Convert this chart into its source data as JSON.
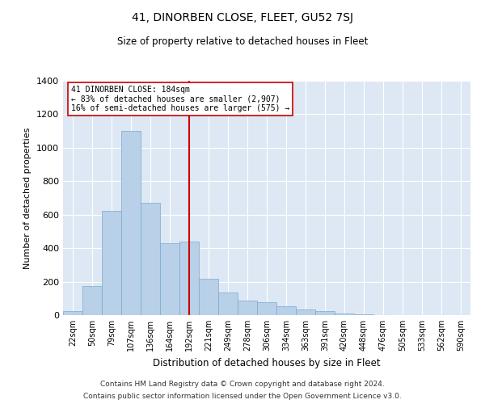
{
  "title": "41, DINORBEN CLOSE, FLEET, GU52 7SJ",
  "subtitle": "Size of property relative to detached houses in Fleet",
  "xlabel": "Distribution of detached houses by size in Fleet",
  "ylabel": "Number of detached properties",
  "bar_color": "#b8d0e8",
  "bar_edge_color": "#7aaad0",
  "background_color": "#dde8f4",
  "vline_color": "#cc0000",
  "annotation_text": "41 DINORBEN CLOSE: 184sqm\n← 83% of detached houses are smaller (2,907)\n16% of semi-detached houses are larger (575) →",
  "annotation_box_edgecolor": "#cc0000",
  "categories": [
    "22sqm",
    "50sqm",
    "79sqm",
    "107sqm",
    "136sqm",
    "164sqm",
    "192sqm",
    "221sqm",
    "249sqm",
    "278sqm",
    "306sqm",
    "334sqm",
    "363sqm",
    "391sqm",
    "420sqm",
    "448sqm",
    "476sqm",
    "505sqm",
    "533sqm",
    "562sqm",
    "590sqm"
  ],
  "values": [
    25,
    175,
    625,
    1100,
    670,
    430,
    440,
    215,
    135,
    85,
    75,
    55,
    32,
    25,
    10,
    5,
    2,
    1,
    0,
    0,
    0
  ],
  "vline_bin_index": 6,
  "ylim": [
    0,
    1400
  ],
  "yticks": [
    0,
    200,
    400,
    600,
    800,
    1000,
    1200,
    1400
  ],
  "footnote_line1": "Contains HM Land Registry data © Crown copyright and database right 2024.",
  "footnote_line2": "Contains public sector information licensed under the Open Government Licence v3.0.",
  "figsize": [
    6.0,
    5.0
  ],
  "dpi": 100
}
